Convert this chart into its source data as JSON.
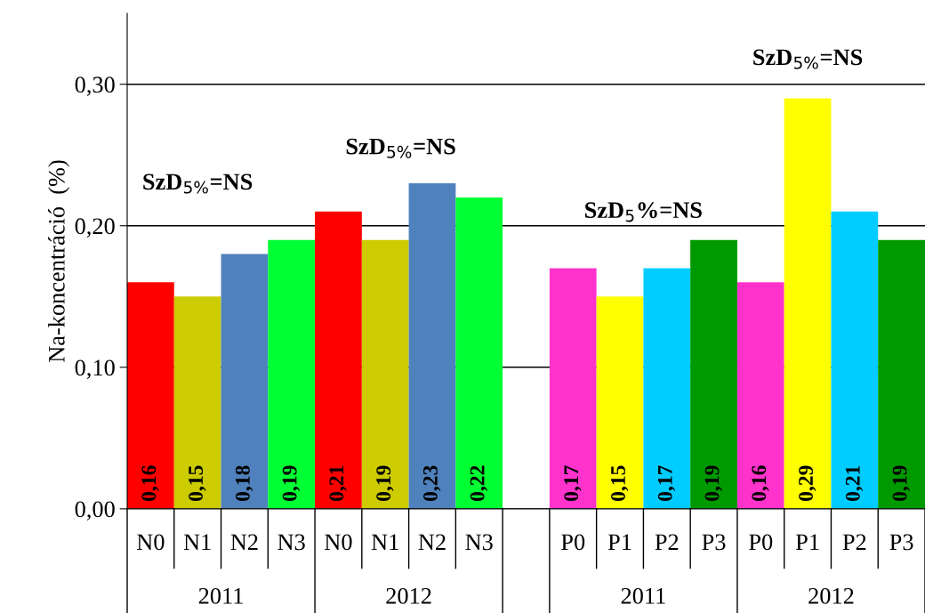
{
  "chart_data": {
    "type": "bar",
    "ylabel": "Na-koncentráció  (%)",
    "categories": [
      "N0",
      "N1",
      "N2",
      "N3",
      "N0",
      "N1",
      "N2",
      "N3",
      null,
      "P0",
      "P1",
      "P2",
      "P3",
      "P0",
      "P1",
      "P2",
      "P3"
    ],
    "values": [
      0.16,
      0.15,
      0.18,
      0.19,
      0.21,
      0.19,
      0.23,
      0.22,
      null,
      0.17,
      0.15,
      0.17,
      0.19,
      0.16,
      0.29,
      0.21,
      0.19
    ],
    "colors": [
      "#ff0000",
      "#cccc00",
      "#4f81bd",
      "#00ff33",
      "#ff0000",
      "#cccc00",
      "#4f81bd",
      "#00ff33",
      "#ffffff",
      "#ff33cc",
      "#ffff00",
      "#00ccff",
      "#009900",
      "#ff33cc",
      "#ffff00",
      "#00ccff",
      "#009900"
    ],
    "value_labels": [
      "0,16",
      "0,15",
      "0,18",
      "0,19",
      "0,21",
      "0,19",
      "0,23",
      "0,22",
      null,
      "0,17",
      "0,15",
      "0,17",
      "0,19",
      "0,16",
      "0,29",
      "0,21",
      "0,19"
    ],
    "ylim": [
      0,
      0.35
    ],
    "yticks": [
      {
        "value": 0,
        "label": "0,00"
      },
      {
        "value": 0.1,
        "label": "0,10"
      },
      {
        "value": 0.2,
        "label": "0,20"
      },
      {
        "value": 0.3,
        "label": "0,30"
      }
    ],
    "grid": "y",
    "annotations": [
      "SzD$_{5%}$=NS",
      "SzD$_{5%}$=NS",
      "SzD$_{5}$%=NS",
      "SzD$_{5%}$=NS",
      "2011",
      "2012",
      "2011",
      "2012"
    ]
  }
}
